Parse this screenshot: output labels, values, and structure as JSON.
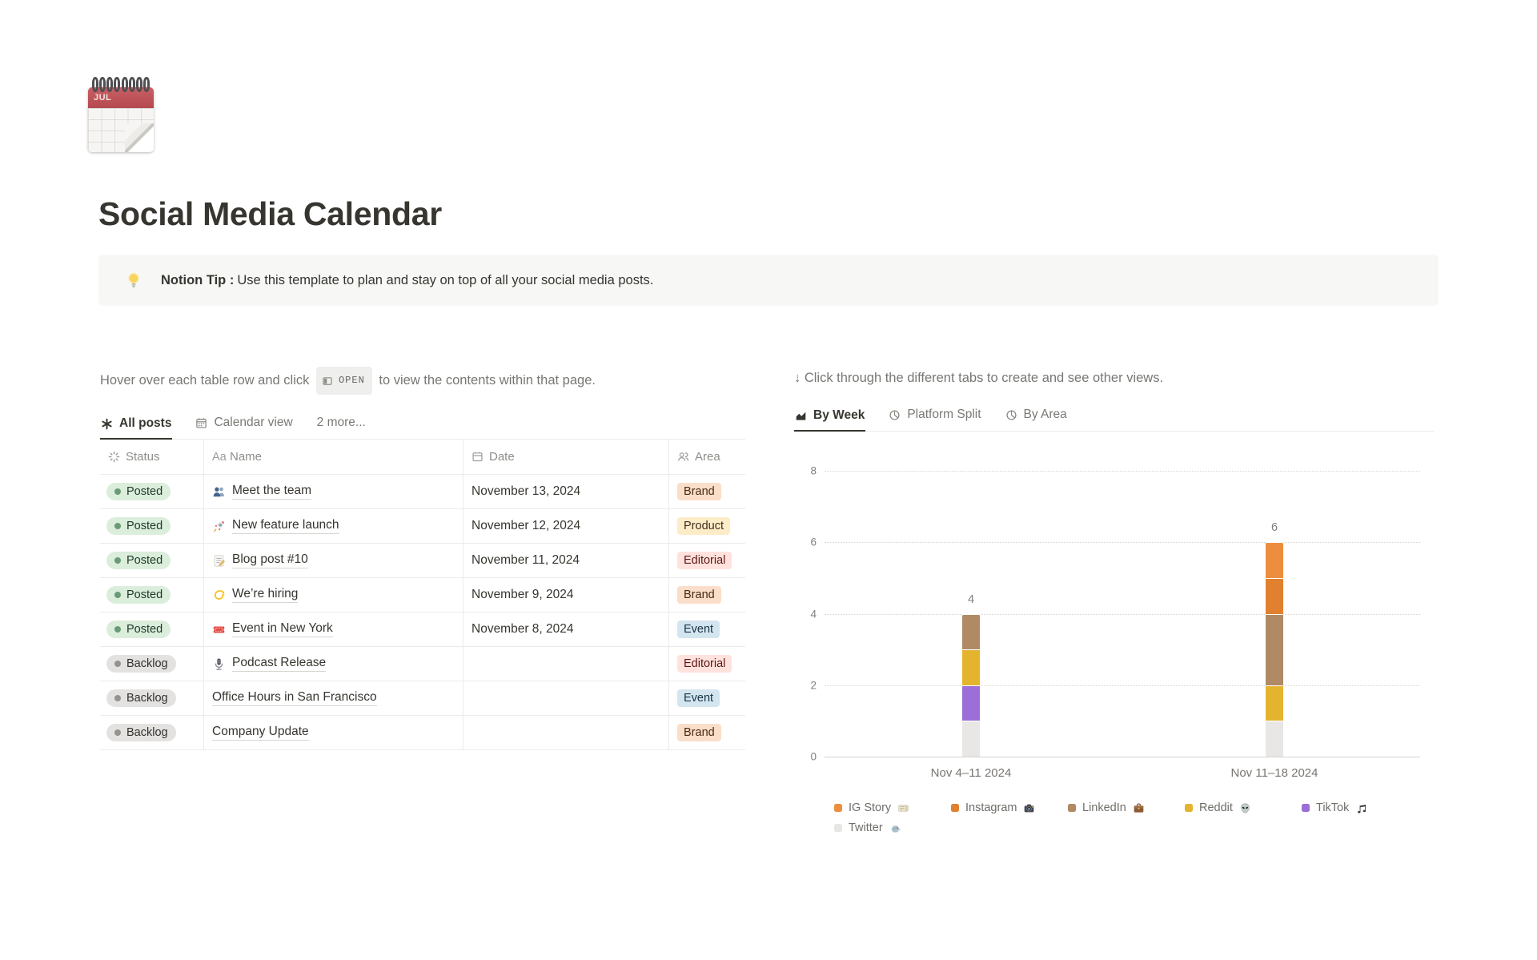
{
  "page": {
    "title": "Social Media Calendar",
    "icon": "spiral-calendar",
    "icon_label": "JUL"
  },
  "callout": {
    "icon": "light-bulb",
    "bold_label": "Notion Tip :",
    "text": "Use this template to plan and stay on top of all your social media posts."
  },
  "left": {
    "instruction_pre": "Hover over each table row and click",
    "open_button_label": "OPEN",
    "instruction_post": "to view the contents within that page.",
    "tabs": [
      {
        "label": "All posts",
        "icon": "asterisk",
        "active": true
      },
      {
        "label": "Calendar view",
        "icon": "calendar-grid",
        "active": false
      },
      {
        "label": "2 more...",
        "icon": "",
        "active": false
      }
    ],
    "table": {
      "columns": [
        {
          "label": "Status",
          "icon": "status-spinner"
        },
        {
          "label": "Name",
          "icon": "aa"
        },
        {
          "label": "Date",
          "icon": "calendar"
        },
        {
          "label": "Area",
          "icon": "people"
        }
      ],
      "rows": [
        {
          "status": "Posted",
          "status_color": "green",
          "icon": "busts-in-silhouette",
          "name": "Meet the team",
          "date": "November 13, 2024",
          "area": "Brand",
          "area_color": "orange"
        },
        {
          "status": "Posted",
          "status_color": "green",
          "icon": "rocket",
          "name": "New feature launch",
          "date": "November 12, 2024",
          "area": "Product",
          "area_color": "yellow"
        },
        {
          "status": "Posted",
          "status_color": "green",
          "icon": "memo",
          "name": "Blog post #10",
          "date": "November 11, 2024",
          "area": "Editorial",
          "area_color": "red"
        },
        {
          "status": "Posted",
          "status_color": "green",
          "icon": "dizzy",
          "name": "We’re hiring",
          "date": "November 9, 2024",
          "area": "Brand",
          "area_color": "orange"
        },
        {
          "status": "Posted",
          "status_color": "green",
          "icon": "admission-ticket",
          "name": "Event in New York",
          "date": "November 8, 2024",
          "area": "Event",
          "area_color": "blue"
        },
        {
          "status": "Backlog",
          "status_color": "gray",
          "icon": "studio-microphone",
          "name": "Podcast Release",
          "date": "",
          "area": "Editorial",
          "area_color": "red"
        },
        {
          "status": "Backlog",
          "status_color": "gray",
          "icon": "",
          "name": "Office Hours in San Francisco",
          "date": "",
          "area": "Event",
          "area_color": "blue"
        },
        {
          "status": "Backlog",
          "status_color": "gray",
          "icon": "",
          "name": "Company Update",
          "date": "",
          "area": "Brand",
          "area_color": "orange"
        }
      ]
    }
  },
  "right": {
    "instruction": "↓ Click through the different tabs to create and see other views.",
    "tabs": [
      {
        "label": "By Week",
        "icon": "chart-week",
        "active": true
      },
      {
        "label": "Platform Split",
        "icon": "pie",
        "active": false
      },
      {
        "label": "By Area",
        "icon": "pie",
        "active": false
      }
    ]
  },
  "chart_data": {
    "type": "bar",
    "stacked": true,
    "title": "",
    "categories": [
      "Nov 4–11 2024",
      "Nov 11–18 2024"
    ],
    "series": [
      {
        "name": "IG Story",
        "emoji_icon": "rolled-newspaper",
        "color": "#ED8E3E",
        "values": [
          0,
          1
        ]
      },
      {
        "name": "Instagram",
        "emoji_icon": "camera-flash",
        "color": "#E1802F",
        "values": [
          0,
          1
        ]
      },
      {
        "name": "LinkedIn",
        "emoji_icon": "briefcase",
        "color": "#B08A65",
        "values": [
          1,
          2
        ]
      },
      {
        "name": "Reddit",
        "emoji_icon": "alien",
        "color": "#E5B42E",
        "values": [
          1,
          1
        ]
      },
      {
        "name": "TikTok",
        "emoji_icon": "musical-notes",
        "color": "#9C6ED8",
        "values": [
          1,
          0
        ]
      },
      {
        "name": "Twitter",
        "emoji_icon": "bird",
        "color": "#E8E7E5",
        "values": [
          1,
          1
        ]
      }
    ],
    "totals": [
      4,
      6
    ],
    "xlabel": "",
    "ylabel": "",
    "ylim": [
      0,
      8
    ],
    "yticks": [
      0,
      2,
      4,
      6,
      8
    ],
    "grid": "horizontal-dotted",
    "legend_position": "bottom",
    "bar_value_labels": true
  },
  "colors": {
    "text": "#37352F",
    "muted_text": "#787774",
    "callout_bg": "#F7F7F5",
    "status": {
      "green_bg": "#DBEDDB",
      "green_dot": "#6A9B77",
      "gray_bg": "#E3E2E0",
      "gray_dot": "#96938E"
    },
    "tags": {
      "orange_bg": "#FADEC9",
      "yellow_bg": "#FDECC8",
      "red_bg": "#FFE2DD",
      "blue_bg": "#D3E5EF"
    }
  }
}
